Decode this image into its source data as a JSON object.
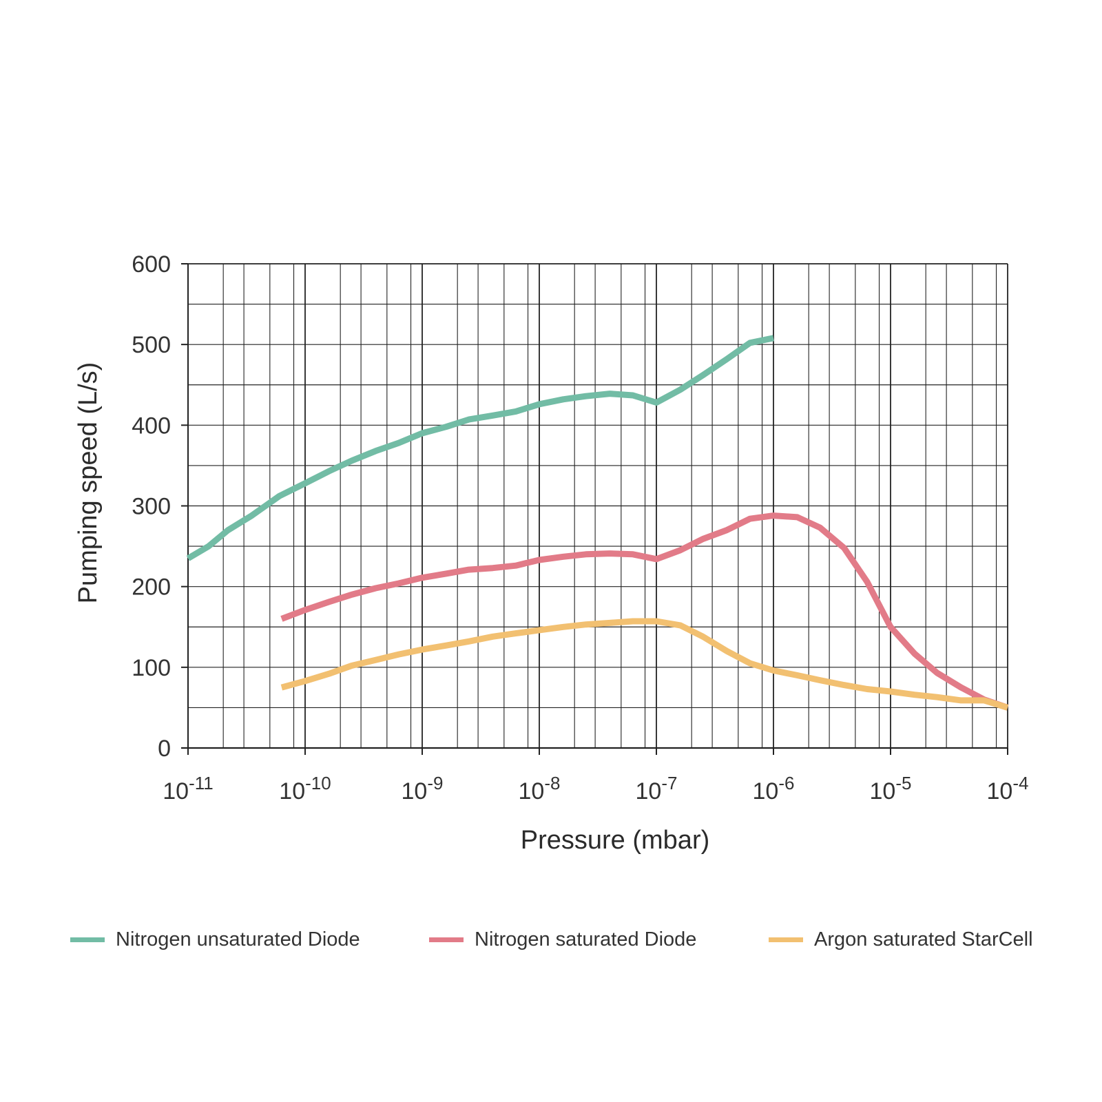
{
  "chart_data": {
    "type": "line",
    "xlabel": "Pressure (mbar)",
    "ylabel": "Pumping speed (L/s)",
    "x_scale": "log",
    "xlim": [
      1e-11,
      0.0001
    ],
    "ylim": [
      0,
      600
    ],
    "grid": true,
    "legend_position": "bottom",
    "y_ticks": [
      "0",
      "100",
      "200",
      "300",
      "400",
      "500",
      "600"
    ],
    "x_ticks": [
      {
        "base": "10",
        "exp": "-11"
      },
      {
        "base": "10",
        "exp": "-10"
      },
      {
        "base": "10",
        "exp": "-9"
      },
      {
        "base": "10",
        "exp": "-8"
      },
      {
        "base": "10",
        "exp": "-7"
      },
      {
        "base": "10",
        "exp": "-6"
      },
      {
        "base": "10",
        "exp": "-5"
      },
      {
        "base": "10",
        "exp": "-4"
      }
    ],
    "series": [
      {
        "name": "Nitrogen unsaturated Diode",
        "color": "#72bca5",
        "points": [
          [
            1e-11,
            235
          ],
          [
            1.5e-11,
            250
          ],
          [
            2.2e-11,
            270
          ],
          [
            3.5e-11,
            288
          ],
          [
            6e-11,
            312
          ],
          [
            1e-10,
            328
          ],
          [
            1.6e-10,
            343
          ],
          [
            2.5e-10,
            356
          ],
          [
            4e-10,
            368
          ],
          [
            6.3e-10,
            378
          ],
          [
            1e-09,
            390
          ],
          [
            1.6e-09,
            398
          ],
          [
            2.5e-09,
            407
          ],
          [
            4e-09,
            412
          ],
          [
            6.3e-09,
            417
          ],
          [
            1e-08,
            426
          ],
          [
            1.6e-08,
            432
          ],
          [
            2.5e-08,
            436
          ],
          [
            4e-08,
            439
          ],
          [
            6.3e-08,
            437
          ],
          [
            1e-07,
            428
          ],
          [
            1.6e-07,
            444
          ],
          [
            2.5e-07,
            462
          ],
          [
            4e-07,
            482
          ],
          [
            6.3e-07,
            502
          ],
          [
            1e-06,
            508
          ]
        ]
      },
      {
        "name": "Nitrogen saturated Diode",
        "color": "#e27b88",
        "points": [
          [
            6.3e-11,
            160
          ],
          [
            1e-10,
            171
          ],
          [
            1.6e-10,
            181
          ],
          [
            2.5e-10,
            190
          ],
          [
            4e-10,
            198
          ],
          [
            6.3e-10,
            204
          ],
          [
            1e-09,
            211
          ],
          [
            1.6e-09,
            216
          ],
          [
            2.5e-09,
            221
          ],
          [
            4e-09,
            223
          ],
          [
            6.3e-09,
            226
          ],
          [
            1e-08,
            233
          ],
          [
            1.6e-08,
            237
          ],
          [
            2.5e-08,
            240
          ],
          [
            4e-08,
            241
          ],
          [
            6.3e-08,
            240
          ],
          [
            1e-07,
            234
          ],
          [
            1.6e-07,
            245
          ],
          [
            2.5e-07,
            259
          ],
          [
            4e-07,
            270
          ],
          [
            6.3e-07,
            284
          ],
          [
            1e-06,
            288
          ],
          [
            1.6e-06,
            286
          ],
          [
            2.5e-06,
            273
          ],
          [
            4e-06,
            248
          ],
          [
            6.3e-06,
            206
          ],
          [
            1e-05,
            150
          ],
          [
            1.6e-05,
            117
          ],
          [
            2.5e-05,
            93
          ],
          [
            4e-05,
            75
          ],
          [
            6.3e-05,
            60
          ],
          [
            0.0001,
            50
          ]
        ]
      },
      {
        "name": "Argon saturated StarCell",
        "color": "#f2c071",
        "points": [
          [
            6.3e-11,
            75
          ],
          [
            1e-10,
            83
          ],
          [
            1.6e-10,
            92
          ],
          [
            2.5e-10,
            102
          ],
          [
            4e-10,
            109
          ],
          [
            6.3e-10,
            116
          ],
          [
            1e-09,
            122
          ],
          [
            1.6e-09,
            127
          ],
          [
            2.5e-09,
            132
          ],
          [
            4e-09,
            138
          ],
          [
            6.3e-09,
            142
          ],
          [
            1e-08,
            146
          ],
          [
            1.6e-08,
            150
          ],
          [
            2.5e-08,
            153
          ],
          [
            4e-08,
            155
          ],
          [
            6.3e-08,
            157
          ],
          [
            1e-07,
            157
          ],
          [
            1.6e-07,
            152
          ],
          [
            2.5e-07,
            138
          ],
          [
            4e-07,
            120
          ],
          [
            6.3e-07,
            105
          ],
          [
            1e-06,
            96
          ],
          [
            1.6e-06,
            90
          ],
          [
            2.5e-06,
            84
          ],
          [
            4e-06,
            78
          ],
          [
            6.3e-06,
            73
          ],
          [
            1e-05,
            70
          ],
          [
            1.6e-05,
            66
          ],
          [
            2.5e-05,
            63
          ],
          [
            4e-05,
            59
          ],
          [
            6.3e-05,
            59
          ],
          [
            0.0001,
            50
          ]
        ]
      }
    ]
  }
}
